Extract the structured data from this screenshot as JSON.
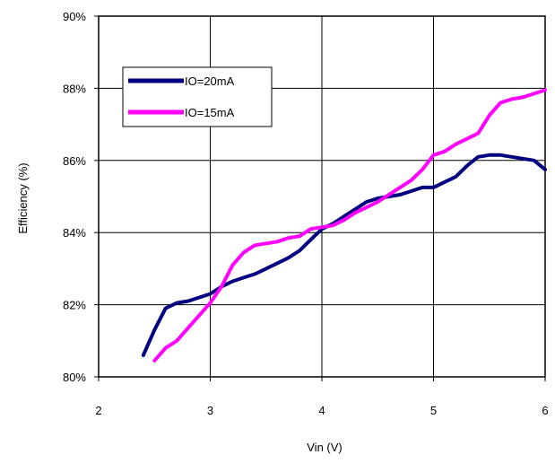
{
  "chart_data": {
    "type": "line",
    "title": "",
    "xlabel": "Vin (V)",
    "ylabel": "Efficiency (%)",
    "xlim": [
      2,
      6
    ],
    "ylim": [
      80,
      90
    ],
    "xticks": [
      "2",
      "3",
      "4",
      "5",
      "6"
    ],
    "yticks": [
      "80%",
      "82%",
      "84%",
      "86%",
      "88%",
      "90%"
    ],
    "grid": true,
    "legend_position": "top-left",
    "series": [
      {
        "name": "IO=20mA",
        "color": "#000080",
        "x": [
          2.4,
          2.5,
          2.6,
          2.7,
          2.8,
          2.9,
          3.0,
          3.1,
          3.2,
          3.3,
          3.4,
          3.5,
          3.6,
          3.7,
          3.8,
          3.9,
          4.0,
          4.1,
          4.2,
          4.3,
          4.4,
          4.5,
          4.6,
          4.7,
          4.8,
          4.9,
          5.0,
          5.1,
          5.2,
          5.3,
          5.4,
          5.5,
          5.6,
          5.7,
          5.8,
          5.9,
          6.0
        ],
        "values": [
          80.6,
          81.3,
          81.9,
          82.05,
          82.1,
          82.2,
          82.3,
          82.5,
          82.65,
          82.75,
          82.85,
          83.0,
          83.15,
          83.3,
          83.5,
          83.8,
          84.1,
          84.25,
          84.45,
          84.65,
          84.85,
          84.95,
          85.0,
          85.05,
          85.15,
          85.25,
          85.25,
          85.4,
          85.55,
          85.85,
          86.1,
          86.15,
          86.15,
          86.1,
          86.05,
          86.0,
          85.75
        ]
      },
      {
        "name": "IO=15mA",
        "color": "#ff00ff",
        "x": [
          2.5,
          2.6,
          2.7,
          2.8,
          2.9,
          3.0,
          3.1,
          3.2,
          3.3,
          3.4,
          3.5,
          3.6,
          3.7,
          3.8,
          3.9,
          4.0,
          4.1,
          4.2,
          4.3,
          4.4,
          4.5,
          4.6,
          4.7,
          4.8,
          4.9,
          5.0,
          5.1,
          5.2,
          5.3,
          5.4,
          5.5,
          5.6,
          5.7,
          5.8,
          5.9,
          6.0
        ],
        "values": [
          80.45,
          80.8,
          81.0,
          81.35,
          81.7,
          82.05,
          82.5,
          83.1,
          83.45,
          83.65,
          83.7,
          83.75,
          83.85,
          83.9,
          84.1,
          84.15,
          84.2,
          84.35,
          84.55,
          84.7,
          84.85,
          85.05,
          85.25,
          85.45,
          85.75,
          86.15,
          86.25,
          86.45,
          86.6,
          86.75,
          87.25,
          87.6,
          87.7,
          87.75,
          87.85,
          87.95
        ]
      }
    ]
  }
}
